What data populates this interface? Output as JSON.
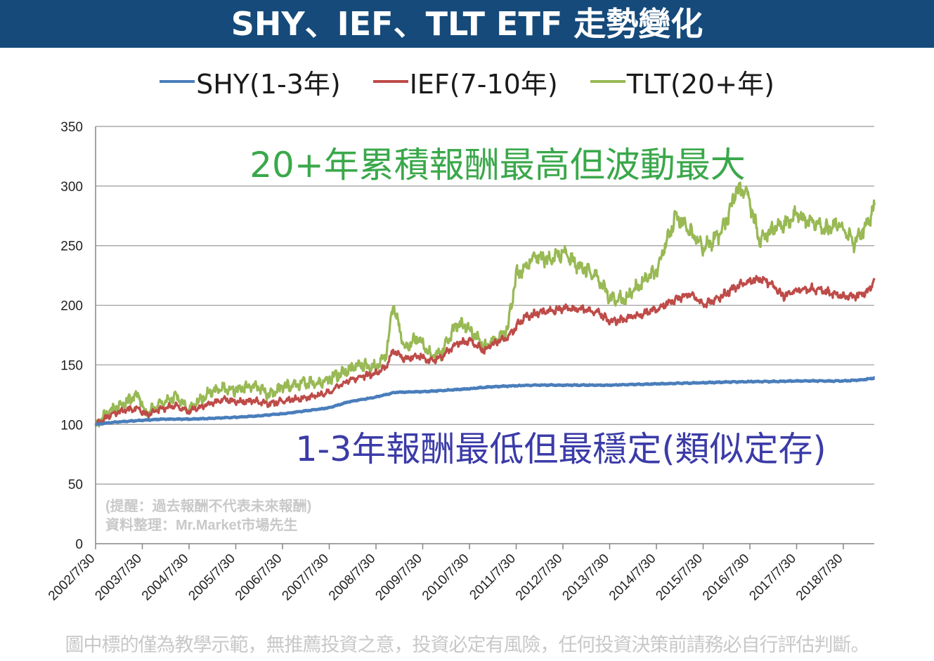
{
  "title": "SHY、IEF、TLT ETF 走勢變化",
  "footer_disclaimer": "圖中標的僅為教學示範，無推薦投資之意，投資必定有風險，任何投資決策前請務必自行評估判斷。",
  "colors": {
    "title_bg": "#154a7a",
    "shy": "#4a7ebb",
    "ief": "#be4b48",
    "tlt": "#98b954"
  },
  "chart_data": {
    "type": "line",
    "title": "",
    "xlabel": "",
    "ylabel": "",
    "ylim": [
      0,
      350
    ],
    "yticks": [
      "0",
      "50",
      "100",
      "150",
      "200",
      "250",
      "300",
      "350"
    ],
    "grid": true,
    "legend_position": "top",
    "x_tick_labels": [
      "2002/7/30",
      "2003/7/30",
      "2004/7/30",
      "2005/7/30",
      "2006/7/30",
      "2007/7/30",
      "2008/7/30",
      "2009/7/30",
      "2010/7/30",
      "2011/7/30",
      "2012/7/30",
      "2013/7/30",
      "2014/7/30",
      "2015/7/30",
      "2016/7/30",
      "2017/7/30",
      "2018/7/30"
    ],
    "annotations": {
      "tlt_note": "20+年累積報酬最高但波動最大",
      "shy_note": "1-3年報酬最低但最穩定(類似定存)",
      "reminder": "(提醒：過去報酬不代表未來報酬)",
      "source": "資料整理：Mr.Market市場先生"
    },
    "series": [
      {
        "name": "SHY(1-3年)",
        "x": [
          2002.58,
          2003.0,
          2003.58,
          2004.0,
          2004.58,
          2005.0,
          2005.58,
          2006.0,
          2006.58,
          2007.0,
          2007.58,
          2008.0,
          2008.58,
          2009.0,
          2009.58,
          2010.0,
          2010.58,
          2011.0,
          2011.58,
          2012.0,
          2012.58,
          2013.0,
          2013.58,
          2014.0,
          2014.58,
          2015.0,
          2015.58,
          2016.0,
          2016.58,
          2017.0,
          2017.58,
          2018.0,
          2018.58,
          2019.0,
          2019.25
        ],
        "y": [
          100,
          102,
          103.5,
          104.5,
          104.5,
          105,
          106,
          107,
          109,
          111,
          114,
          119,
          123,
          127,
          127.5,
          128.5,
          130,
          131.5,
          132.5,
          133,
          133,
          133,
          133,
          133.5,
          134,
          134.5,
          135,
          135.5,
          136,
          136,
          136.5,
          136.5,
          136.5,
          137.5,
          139
        ]
      },
      {
        "name": "IEF(7-10年)",
        "x": [
          2002.58,
          2002.9,
          2003.2,
          2003.5,
          2003.65,
          2004.0,
          2004.3,
          2004.58,
          2005.0,
          2005.3,
          2005.58,
          2006.0,
          2006.3,
          2006.58,
          2007.0,
          2007.3,
          2007.58,
          2008.0,
          2008.3,
          2008.58,
          2008.8,
          2008.95,
          2009.2,
          2009.5,
          2009.75,
          2010.0,
          2010.3,
          2010.6,
          2010.9,
          2011.1,
          2011.4,
          2011.58,
          2011.75,
          2012.0,
          2012.3,
          2012.58,
          2012.9,
          2013.0,
          2013.3,
          2013.6,
          2013.9,
          2014.3,
          2014.6,
          2015.0,
          2015.3,
          2015.6,
          2016.0,
          2016.3,
          2016.5,
          2016.8,
          2017.0,
          2017.3,
          2017.6,
          2017.9,
          2018.2,
          2018.5,
          2018.8,
          2019.1,
          2019.25
        ],
        "y": [
          100,
          108,
          112,
          114,
          108,
          113,
          116,
          111,
          117,
          121,
          119,
          120,
          117,
          120,
          122,
          124,
          127,
          137,
          140,
          143,
          148,
          162,
          155,
          158,
          153,
          157,
          168,
          170,
          162,
          168,
          173,
          182,
          190,
          193,
          195,
          198,
          196,
          197,
          195,
          186,
          188,
          193,
          197,
          205,
          210,
          200,
          208,
          216,
          219,
          222,
          219,
          208,
          213,
          214,
          212,
          208,
          207,
          211,
          221
        ]
      },
      {
        "name": "TLT(20+年)",
        "x": [
          2002.58,
          2002.9,
          2003.2,
          2003.5,
          2003.65,
          2004.0,
          2004.3,
          2004.58,
          2005.0,
          2005.3,
          2005.58,
          2006.0,
          2006.3,
          2006.58,
          2007.0,
          2007.3,
          2007.58,
          2008.0,
          2008.3,
          2008.58,
          2008.8,
          2008.95,
          2009.2,
          2009.5,
          2009.75,
          2010.0,
          2010.3,
          2010.6,
          2010.9,
          2011.1,
          2011.4,
          2011.58,
          2011.75,
          2012.0,
          2012.3,
          2012.58,
          2012.9,
          2013.0,
          2013.3,
          2013.6,
          2013.9,
          2014.3,
          2014.6,
          2015.0,
          2015.3,
          2015.6,
          2016.0,
          2016.3,
          2016.5,
          2016.8,
          2017.0,
          2017.3,
          2017.6,
          2017.9,
          2018.2,
          2018.5,
          2018.8,
          2019.1,
          2019.25
        ],
        "y": [
          100,
          112,
          118,
          125,
          109,
          118,
          123,
          113,
          126,
          131,
          129,
          133,
          125,
          131,
          135,
          134,
          138,
          146,
          150,
          148,
          158,
          201,
          165,
          172,
          159,
          160,
          185,
          180,
          165,
          170,
          180,
          225,
          230,
          242,
          238,
          245,
          233,
          231,
          225,
          206,
          205,
          220,
          230,
          275,
          262,
          248,
          262,
          296,
          297,
          253,
          262,
          268,
          276,
          270,
          264,
          268,
          252,
          268,
          284
        ]
      }
    ]
  }
}
